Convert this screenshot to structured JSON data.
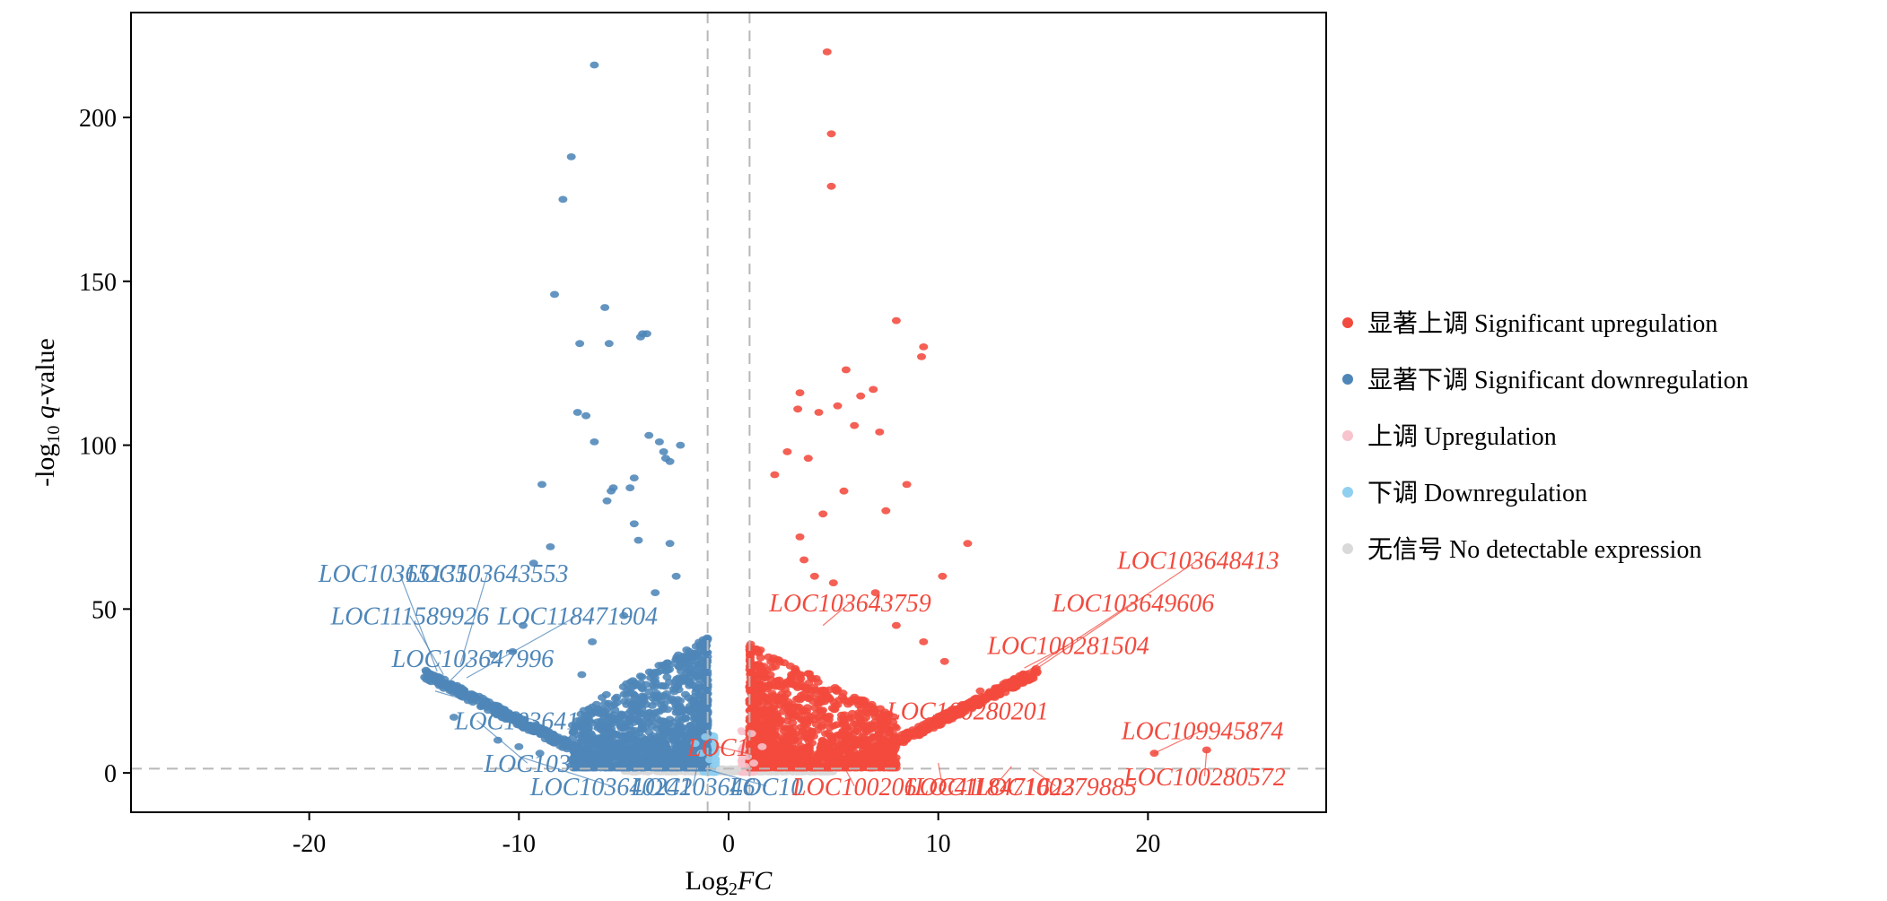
{
  "chart_data": {
    "type": "scatter",
    "title": "",
    "xlabel": {
      "main": "Log",
      "sub": "2",
      "italic": "FC"
    },
    "ylabel": {
      "pre": "-log",
      "sub": "10",
      "italic": " q",
      "post": "-value"
    },
    "xlim": [
      -28.5,
      28.5
    ],
    "ylim": [
      -12,
      232
    ],
    "xticks": [
      -20,
      -10,
      0,
      10,
      20
    ],
    "yticks": [
      0,
      50,
      100,
      150,
      200
    ],
    "grid": false,
    "legend_position": "right",
    "thresholds": {
      "x": [
        -1,
        1
      ],
      "y": 1.3
    },
    "colors": {
      "up_sig": "#f24a3e",
      "down_sig": "#4e86b8",
      "up": "#f7c3cd",
      "down": "#8fcff0",
      "none": "#d9d9d9"
    },
    "series": [
      {
        "name": "显著上调 Significant upregulation",
        "key": "up_sig",
        "points": [
          [
            4.7,
            220
          ],
          [
            4.9,
            195
          ],
          [
            4.9,
            179
          ],
          [
            8,
            138
          ],
          [
            9.3,
            130
          ],
          [
            9.2,
            127
          ],
          [
            5.6,
            123
          ],
          [
            5.2,
            112
          ],
          [
            6.3,
            115
          ],
          [
            3.4,
            116
          ],
          [
            6.9,
            117
          ],
          [
            3.3,
            111
          ],
          [
            4.3,
            110
          ],
          [
            6,
            106
          ],
          [
            7.2,
            104
          ],
          [
            2.8,
            98
          ],
          [
            3.8,
            96
          ],
          [
            2.2,
            91
          ],
          [
            5.5,
            86
          ],
          [
            8.5,
            88
          ],
          [
            7.5,
            80
          ],
          [
            4.5,
            79
          ],
          [
            3.4,
            72
          ],
          [
            3.6,
            65
          ],
          [
            11.4,
            70
          ],
          [
            4.1,
            60
          ],
          [
            10.2,
            60
          ],
          [
            5,
            58
          ],
          [
            7,
            55
          ],
          [
            8,
            45
          ],
          [
            9.3,
            40
          ],
          [
            10.3,
            34
          ],
          [
            12,
            25
          ],
          [
            12.7,
            23
          ],
          [
            20.3,
            6
          ],
          [
            22.8,
            7
          ],
          [
            7.5,
            10
          ],
          [
            13.5,
            28
          ],
          [
            2,
            15
          ],
          [
            2.5,
            22
          ],
          [
            3,
            30
          ],
          [
            6.5,
            22
          ]
        ]
      },
      {
        "name": "显著下调 Significant downregulation",
        "key": "down_sig",
        "points": [
          [
            -6.4,
            216
          ],
          [
            -7.5,
            188
          ],
          [
            -7.9,
            175
          ],
          [
            -8.3,
            146
          ],
          [
            -5.9,
            142
          ],
          [
            -7.1,
            131
          ],
          [
            -4.1,
            134
          ],
          [
            -3.9,
            134
          ],
          [
            -4.2,
            133
          ],
          [
            -5.7,
            131
          ],
          [
            -7.2,
            110
          ],
          [
            -6.8,
            109
          ],
          [
            -6.4,
            101
          ],
          [
            -3.8,
            103
          ],
          [
            -3.3,
            101
          ],
          [
            -3.1,
            98
          ],
          [
            -2.8,
            95
          ],
          [
            -2.3,
            100
          ],
          [
            -3,
            96
          ],
          [
            -4.7,
            87
          ],
          [
            -5.5,
            87
          ],
          [
            -5.6,
            86
          ],
          [
            -4.5,
            90
          ],
          [
            -8.9,
            88
          ],
          [
            -8.5,
            69
          ],
          [
            -9.3,
            64
          ],
          [
            -4.5,
            76
          ],
          [
            -5.8,
            83
          ],
          [
            -4.3,
            71
          ],
          [
            -2.8,
            70
          ],
          [
            -9.8,
            45
          ],
          [
            -10.3,
            37
          ],
          [
            -11.2,
            36
          ],
          [
            -12,
            22
          ],
          [
            -13.1,
            17
          ],
          [
            -11,
            10
          ],
          [
            -10,
            8
          ],
          [
            -9,
            6
          ],
          [
            -2.5,
            60
          ],
          [
            -3.5,
            55
          ],
          [
            -5,
            48
          ],
          [
            -6.5,
            40
          ],
          [
            -7,
            30
          ]
        ]
      },
      {
        "name": "上调 Upregulation",
        "key": "up",
        "points": [
          [
            0.9,
            5
          ],
          [
            1.2,
            3
          ],
          [
            1.6,
            8
          ],
          [
            1.1,
            12
          ],
          [
            0.8,
            2
          ]
        ]
      },
      {
        "name": "下调 Downregulation",
        "key": "down",
        "points": [
          [
            -0.9,
            4
          ],
          [
            -1.3,
            6
          ],
          [
            -1.6,
            9
          ],
          [
            -0.7,
            2
          ],
          [
            -1.1,
            11
          ]
        ]
      },
      {
        "name": "无信号 No detectable expression",
        "key": "none",
        "points": [
          [
            0,
            0.5
          ],
          [
            0.4,
            1
          ],
          [
            -0.4,
            1
          ],
          [
            0.2,
            0.2
          ],
          [
            -0.2,
            0.2
          ]
        ]
      }
    ],
    "labels_down": [
      {
        "text": "LOC103651350",
        "tx": -15.7,
        "ty": 61,
        "x": -13.9,
        "y": 31
      },
      {
        "text": "LOC103643553",
        "tx": -11.5,
        "ty": 61,
        "x": -12.8,
        "y": 33
      },
      {
        "text": "LOC111589926",
        "tx": -15.2,
        "ty": 48,
        "x": -13.6,
        "y": 30
      },
      {
        "text": "LOC118471904",
        "tx": -7.2,
        "ty": 48,
        "x": -12.5,
        "y": 29
      },
      {
        "text": "LOC103647996",
        "tx": -12.2,
        "ty": 35,
        "x": -13.3,
        "y": 28
      },
      {
        "text": "LOC103641771",
        "tx": -9.2,
        "ty": 16,
        "x": -14,
        "y": 25
      },
      {
        "text": "LOC103",
        "tx": -9.6,
        "ty": 3,
        "x": -12,
        "y": 16
      },
      {
        "text": "LOC103640242",
        "tx": -5.6,
        "ty": -4,
        "x": -10,
        "y": 5
      },
      {
        "text": "LOC103646",
        "tx": -1.7,
        "ty": -4,
        "x": -1.5,
        "y": 2
      },
      {
        "text": "LOC10",
        "tx": 1.8,
        "ty": -4,
        "x": -1,
        "y": 1
      }
    ],
    "labels_up": [
      {
        "text": "LOC103648413",
        "tx": 22.4,
        "ty": 65,
        "x": 14.5,
        "y": 31
      },
      {
        "text": "LOC103649606",
        "tx": 19.3,
        "ty": 52,
        "x": 14,
        "y": 30
      },
      {
        "text": "LOC100281504",
        "tx": 16.2,
        "ty": 39,
        "x": 14.1,
        "y": 32
      },
      {
        "text": "LOC103643759",
        "tx": 5.8,
        "ty": 52,
        "x": 4.5,
        "y": 45
      },
      {
        "text": "LOC100280201",
        "tx": 11.4,
        "ty": 19,
        "x": 10,
        "y": 18
      },
      {
        "text": "LOC109945874",
        "tx": 22.6,
        "ty": 13,
        "x": 20.3,
        "y": 6
      },
      {
        "text": "LOC100280572",
        "tx": 22.7,
        "ty": -1,
        "x": 22.8,
        "y": 7
      },
      {
        "text": "LOC1",
        "tx": -0.5,
        "ty": 8,
        "x": 1.5,
        "y": 5
      },
      {
        "text": "LOC100206",
        "tx": 6,
        "ty": -4,
        "x": 5.5,
        "y": 2
      },
      {
        "text": "LOC41",
        "tx": 10.2,
        "ty": -4,
        "x": 10,
        "y": 3
      },
      {
        "text": "LOC118471623",
        "tx": 12.7,
        "ty": -4,
        "x": 13.5,
        "y": 2
      },
      {
        "text": "LOC100279885",
        "tx": 15.6,
        "ty": -4,
        "x": 14.5,
        "y": 1
      }
    ]
  }
}
